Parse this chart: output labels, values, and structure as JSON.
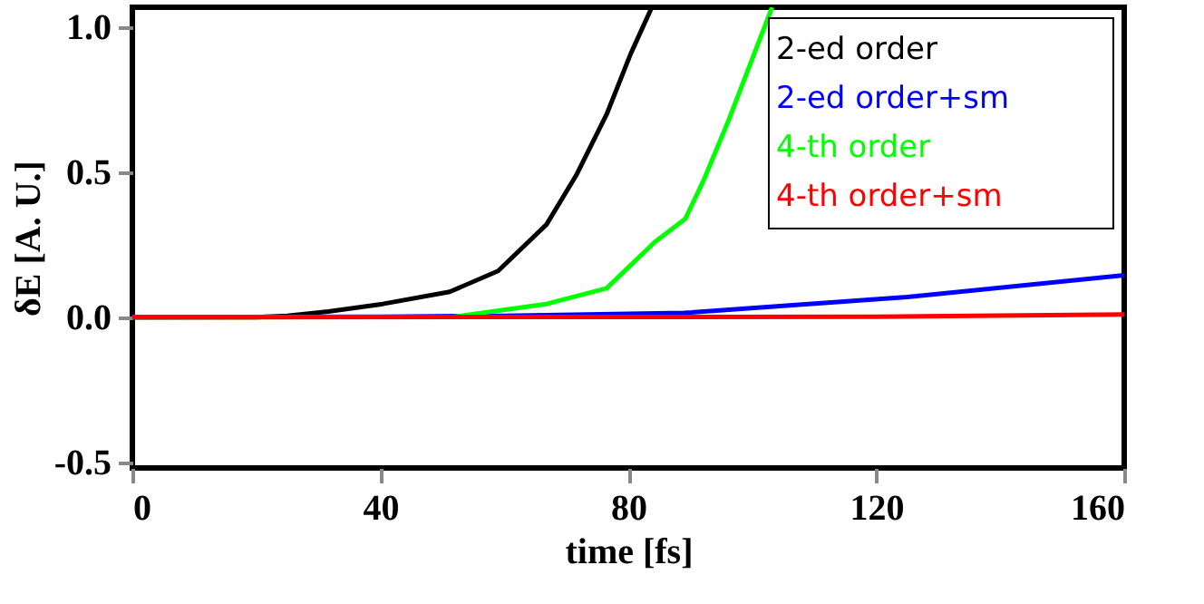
{
  "chart_data": {
    "type": "line",
    "xlabel": "time [fs]",
    "ylabel": "δE [A. U.]",
    "xlim": [
      0,
      160
    ],
    "xticks": [
      0,
      40,
      80,
      120,
      160
    ],
    "ylim": [
      -0.52,
      1.07
    ],
    "yticks": [
      {
        "value": -0.5,
        "label": "-0.5"
      },
      {
        "value": 0,
        "label": "0.0"
      },
      {
        "value": 0.5,
        "label": "0.5"
      },
      {
        "value": 1,
        "label": "1.0"
      }
    ],
    "grid": false,
    "legend": "top right",
    "marker": "none",
    "line_style": "solid",
    "series": [
      {
        "name": "2-ed order",
        "color": "#000000",
        "x": [
          0,
          20,
          25,
          31.6,
          40.4,
          51.2,
          59,
          66.8,
          71.6,
          76.5,
          80.4,
          83.8
        ],
        "values": [
          0,
          0,
          0.005,
          0.02,
          0.046,
          0.088,
          0.16,
          0.32,
          0.49,
          0.7,
          0.91,
          1.07
        ]
      },
      {
        "name": "2-ed order+sm",
        "color": "#0000ff",
        "x": [
          0,
          40,
          60,
          89,
          125,
          160
        ],
        "values": [
          0,
          0.002,
          0.005,
          0.015,
          0.07,
          0.145
        ]
      },
      {
        "name": "4-th order",
        "color": "#00ff00",
        "x": [
          0,
          52,
          66.8,
          76.5,
          84.3,
          89.2,
          92.1,
          96,
          103.2
        ],
        "values": [
          0,
          0.002,
          0.046,
          0.1,
          0.26,
          0.34,
          0.47,
          0.67,
          1.07
        ]
      },
      {
        "name": "4-th order+sm",
        "color": "#ff0000",
        "x": [
          0,
          120,
          160
        ],
        "values": [
          0,
          0.002,
          0.01
        ]
      }
    ]
  }
}
